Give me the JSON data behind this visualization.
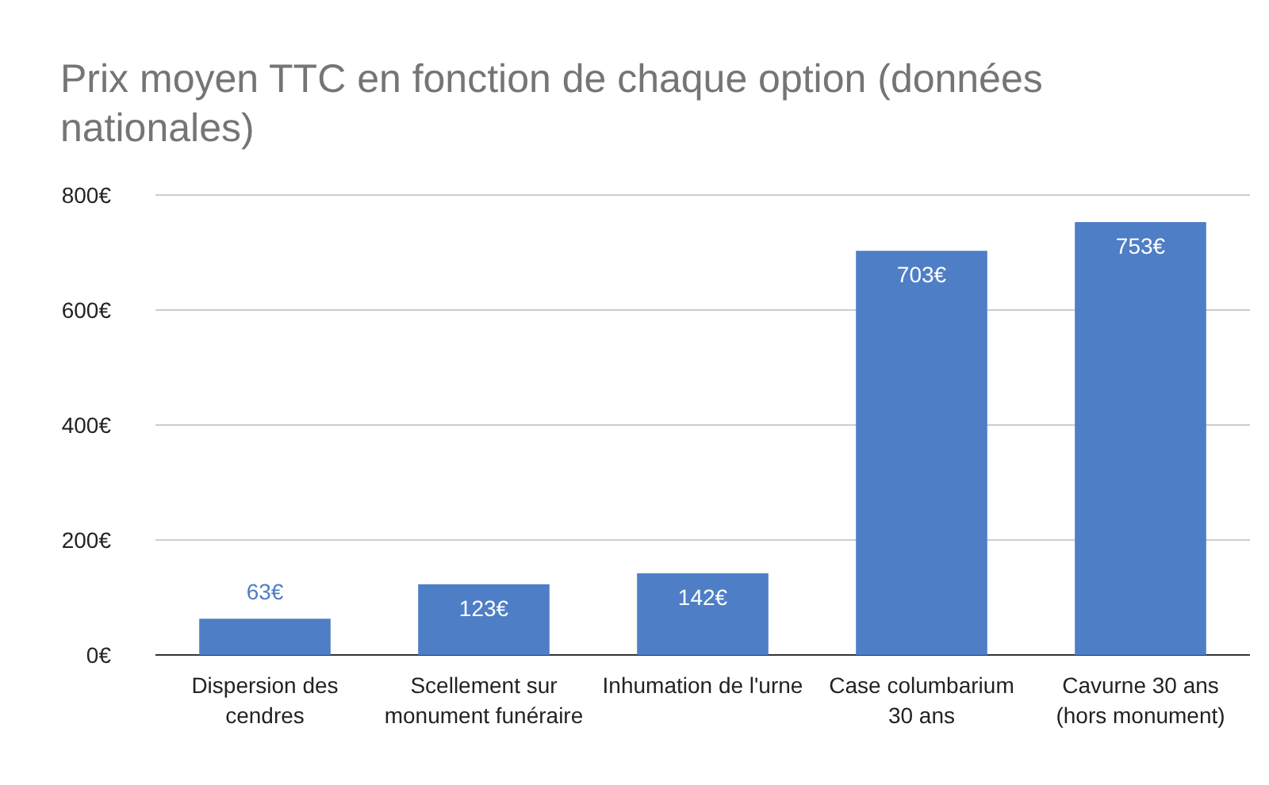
{
  "chart_data": {
    "type": "bar",
    "title": "Prix moyen TTC en fonction de chaque option (données nationales)",
    "categories": [
      "Dispersion des cendres",
      "Scellement sur monument funéraire",
      "Inhumation de l'urne",
      "Case columbarium 30 ans",
      "Cavurne 30 ans (hors monument)"
    ],
    "values": [
      63,
      123,
      142,
      703,
      753
    ],
    "value_labels": [
      "63€",
      "123€",
      "142€",
      "703€",
      "753€"
    ],
    "color": "#4e7ec6",
    "ylim": [
      0,
      800
    ],
    "yticks": [
      {
        "value": 0,
        "label": "0€"
      },
      {
        "value": 200,
        "label": "200€"
      },
      {
        "value": 400,
        "label": "400€"
      },
      {
        "value": 600,
        "label": "600€"
      },
      {
        "value": 800,
        "label": "800€"
      }
    ],
    "grid": "y"
  }
}
